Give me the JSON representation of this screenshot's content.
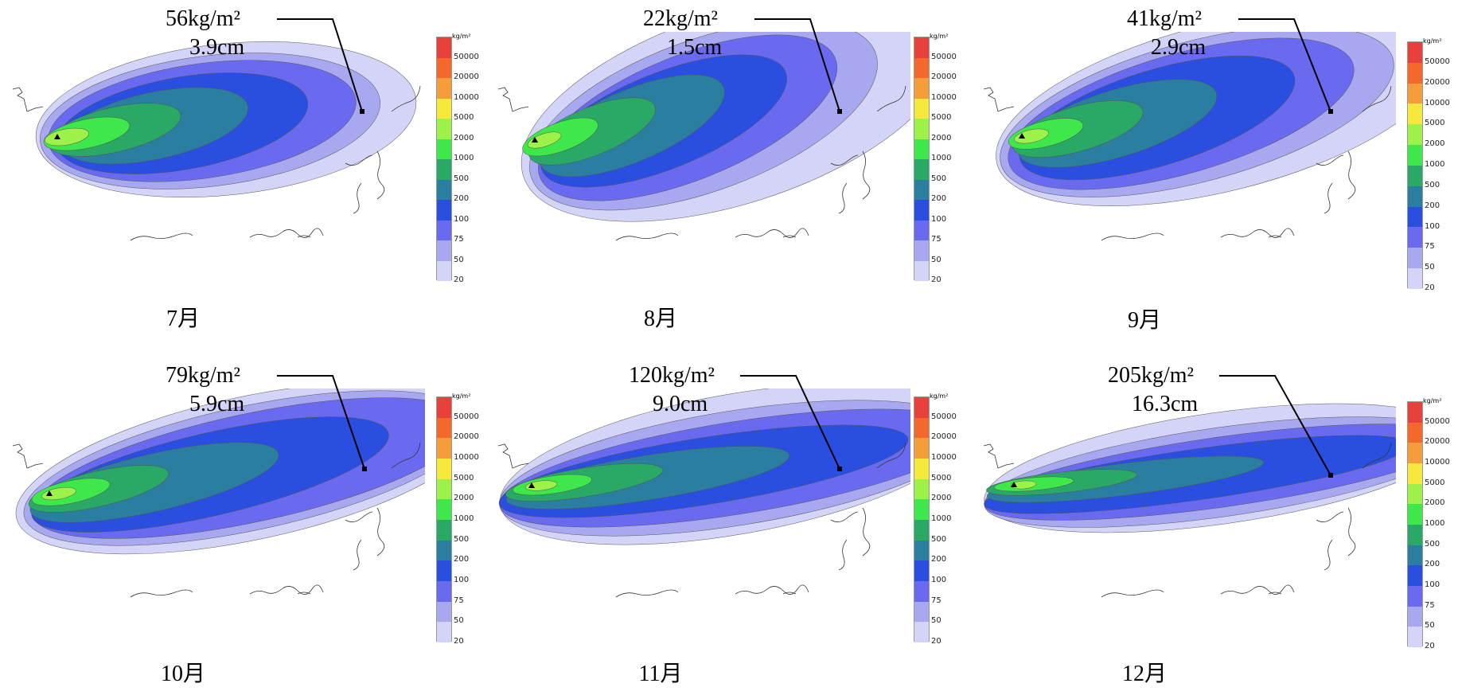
{
  "colorbar": {
    "unit": "kg/m²",
    "levels": [
      "50000",
      "20000",
      "10000",
      "5000",
      "2000",
      "1000",
      "500",
      "200",
      "100",
      "75",
      "50",
      "20"
    ],
    "colors": [
      "#e8403a",
      "#f5682c",
      "#f59d3a",
      "#f7e83c",
      "#9df24a",
      "#3fe84a",
      "#2aa866",
      "#2a7ea0",
      "#2a4ee0",
      "#6a6af0",
      "#a8a8f0",
      "#d4d4f8"
    ]
  },
  "panels": [
    {
      "month": "7月",
      "deposit": "56kg/m²",
      "thickness": "3.9cm"
    },
    {
      "month": "8月",
      "deposit": "22kg/m²",
      "thickness": "1.5cm"
    },
    {
      "month": "9月",
      "deposit": "41kg/m²",
      "thickness": "2.9cm"
    },
    {
      "month": "10月",
      "deposit": "79kg/m²",
      "thickness": "5.9cm"
    },
    {
      "month": "11月",
      "deposit": "120kg/m²",
      "thickness": "9.0cm"
    },
    {
      "month": "12月",
      "deposit": "205kg/m²",
      "thickness": "16.3cm"
    }
  ]
}
